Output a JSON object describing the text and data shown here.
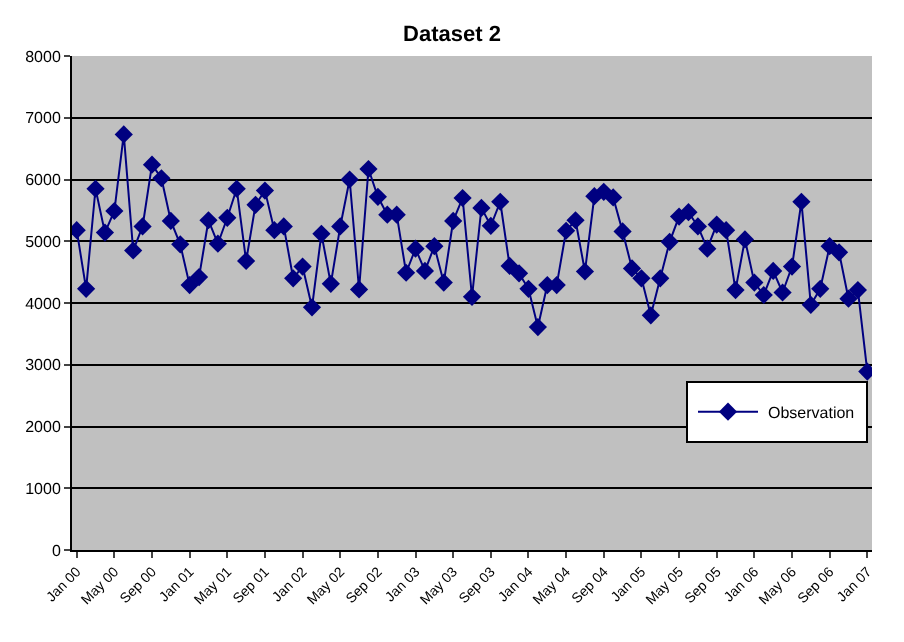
{
  "chart_data": {
    "type": "line",
    "title": "Dataset 2",
    "categories": [
      "Jan 00",
      null,
      null,
      null,
      "May 00",
      null,
      null,
      null,
      "Sep 00",
      null,
      null,
      null,
      "Jan 01",
      null,
      null,
      null,
      "May 01",
      null,
      null,
      null,
      "Sep 01",
      null,
      null,
      null,
      "Jan 02",
      null,
      null,
      null,
      "May 02",
      null,
      null,
      null,
      "Sep 02",
      null,
      null,
      null,
      "Jan 03",
      null,
      null,
      null,
      "May 03",
      null,
      null,
      null,
      "Sep 03",
      null,
      null,
      null,
      "Jan 04",
      null,
      null,
      null,
      "May 04",
      null,
      null,
      null,
      "Sep 04",
      null,
      null,
      null,
      "Jan 05",
      null,
      null,
      null,
      "May 05",
      null,
      null,
      null,
      "Sep 05",
      null,
      null,
      null,
      "Jan 06",
      null,
      null,
      null,
      "May 06",
      null,
      null,
      null,
      "Sep 06",
      null,
      null,
      null,
      "Jan 07"
    ],
    "series": [
      {
        "name": "Observation",
        "color": "#000080",
        "values": [
          5180,
          4230,
          5850,
          5140,
          5490,
          6730,
          4850,
          5240,
          6240,
          6020,
          5330,
          4950,
          4290,
          4420,
          5340,
          4960,
          5380,
          5850,
          4680,
          5590,
          5820,
          5180,
          5240,
          4400,
          4590,
          3930,
          5120,
          4310,
          5240,
          6000,
          4220,
          6170,
          5720,
          5430,
          5430,
          4490,
          4880,
          4520,
          4920,
          4330,
          5330,
          5700,
          4100,
          5540,
          5250,
          5640,
          4600,
          4480,
          4230,
          3610,
          4290,
          4290,
          5170,
          5340,
          4510,
          5730,
          5800,
          5710,
          5160,
          4560,
          4400,
          3800,
          4400,
          4990,
          5400,
          5470,
          5240,
          4880,
          5270,
          5180,
          4210,
          5030,
          4330,
          4130,
          4520,
          4170,
          4590,
          5640,
          3970,
          4230,
          4920,
          4820,
          4070,
          4210,
          2890
        ]
      }
    ],
    "ylim": [
      0,
      8000
    ],
    "yticks": [
      0,
      1000,
      2000,
      3000,
      4000,
      5000,
      6000,
      7000,
      8000
    ],
    "grid": "y",
    "legend": "right",
    "marker": "diamond",
    "line_style": "solid"
  }
}
